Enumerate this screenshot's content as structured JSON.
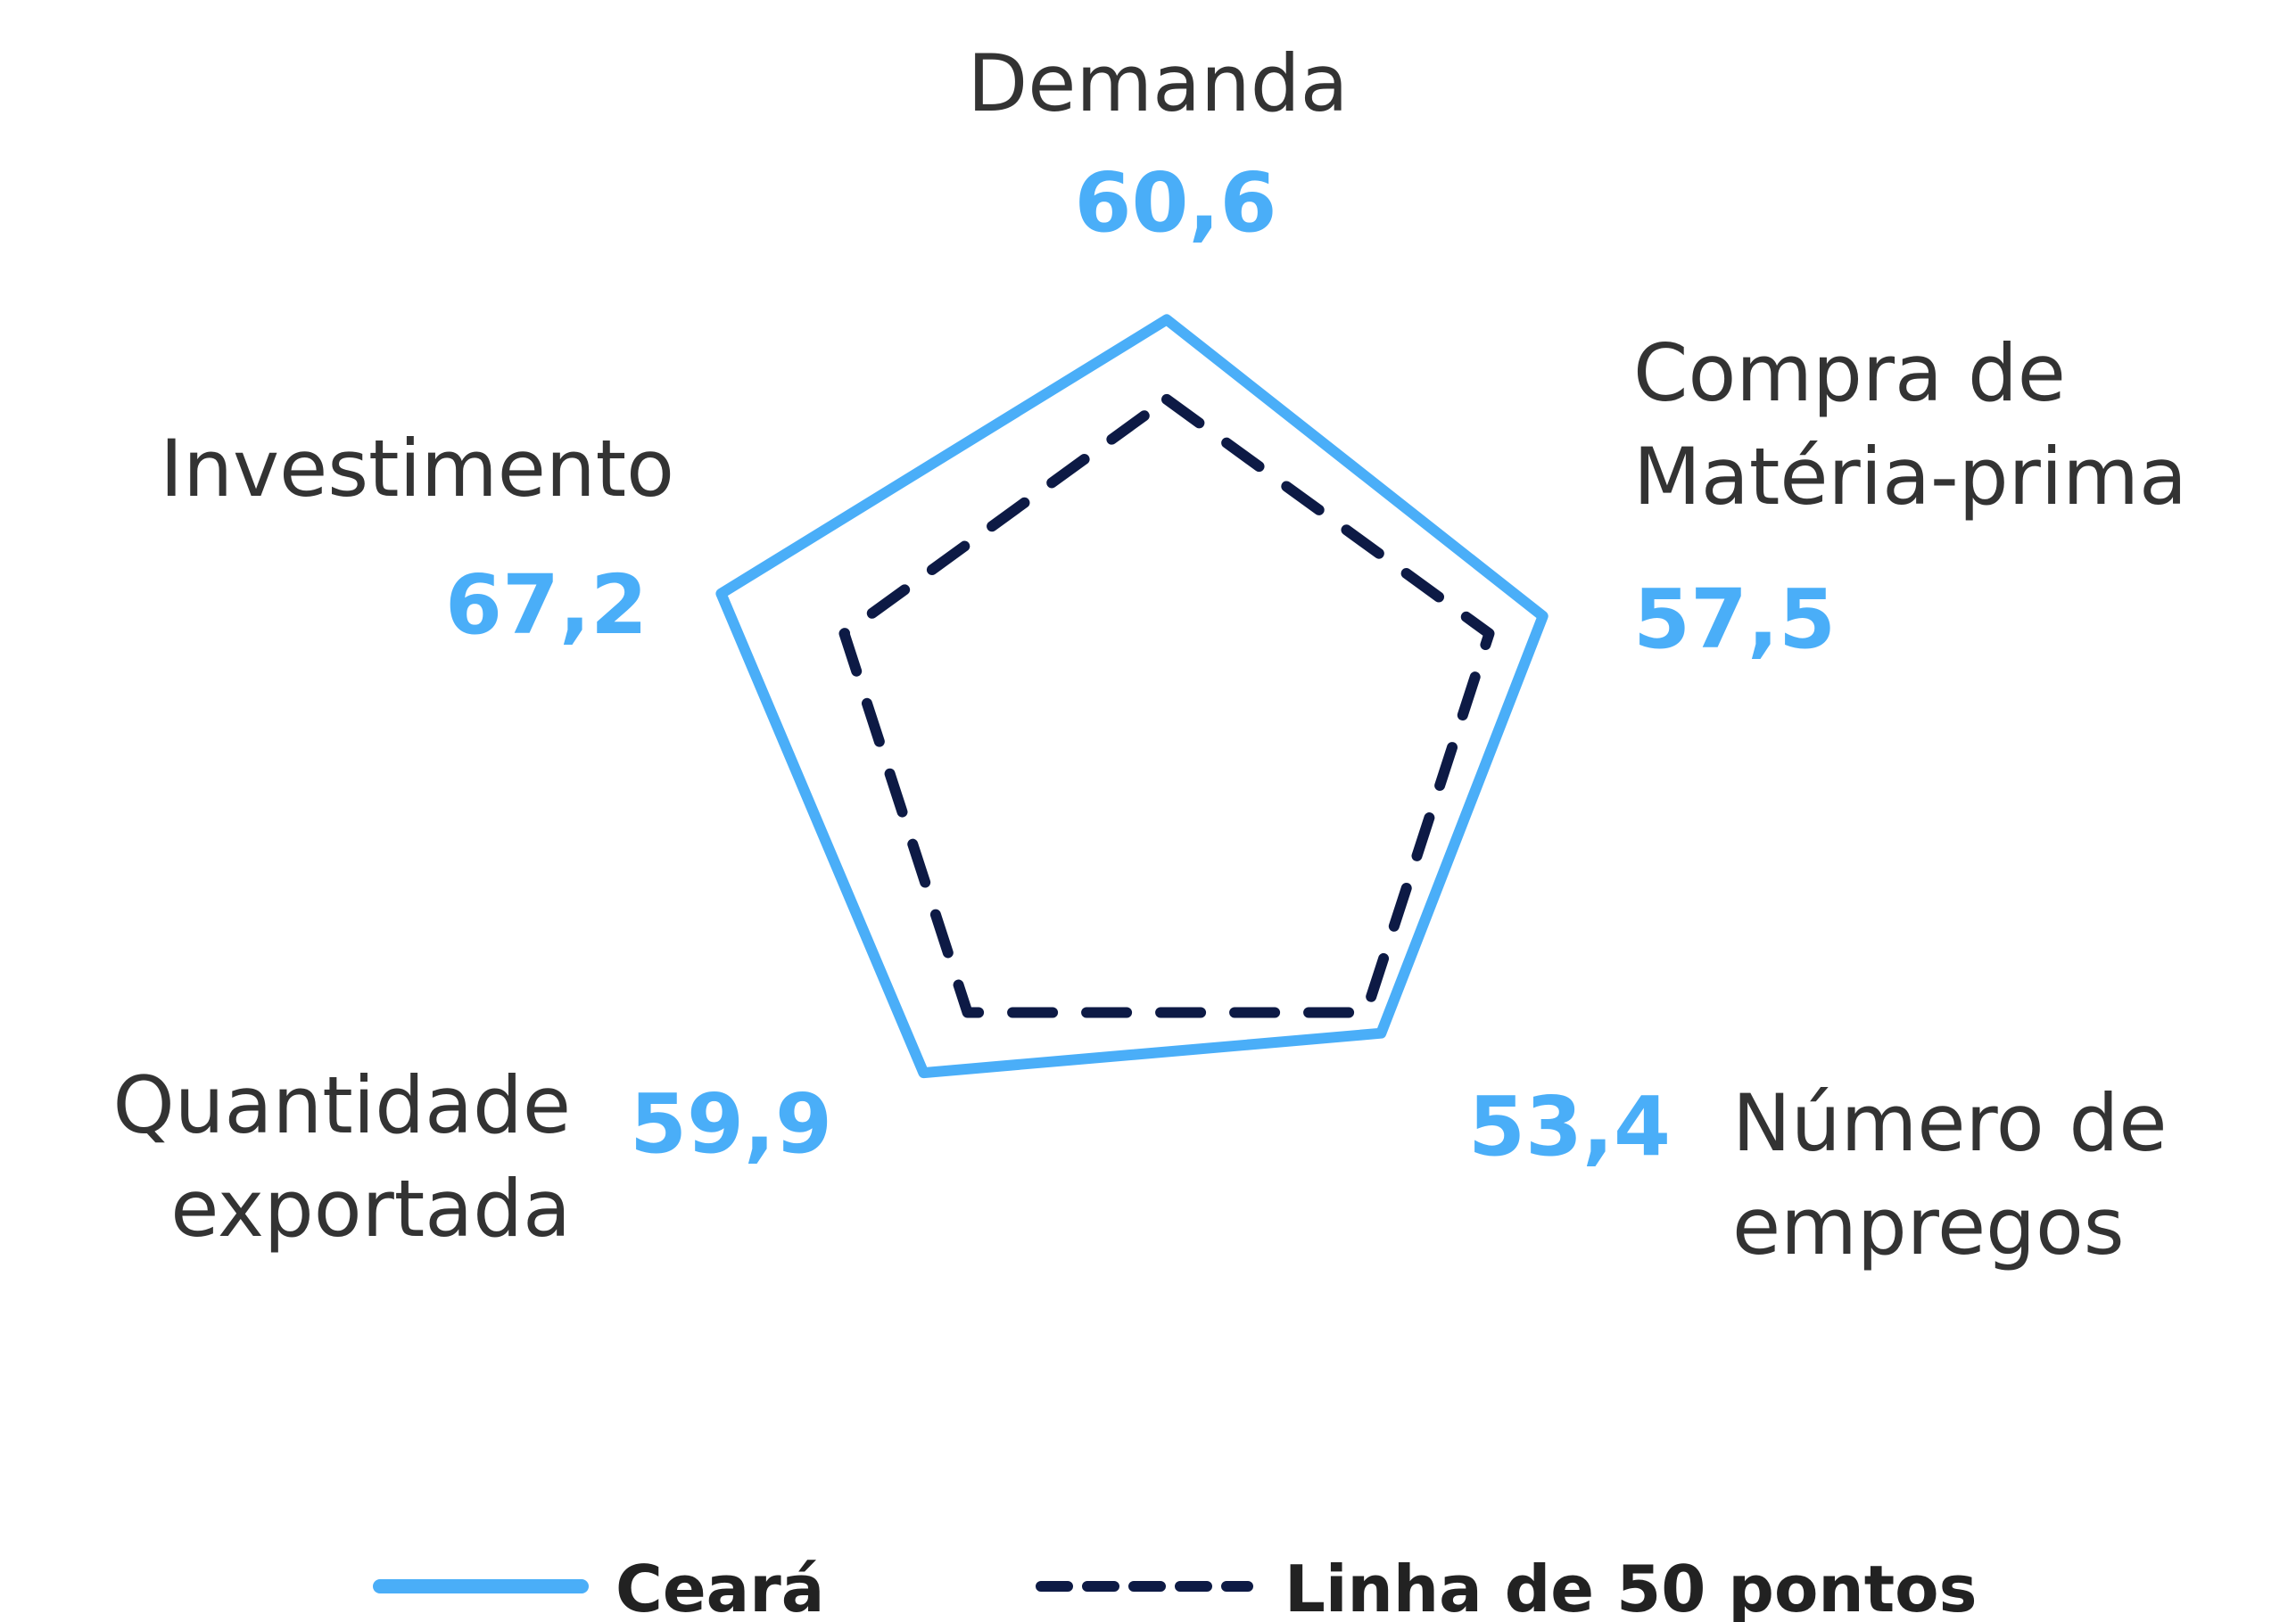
{
  "chart_data": {
    "type": "radar",
    "categories": [
      [
        "Demanda"
      ],
      [
        "Compra de",
        "Matéria-prima"
      ],
      [
        "Número de",
        "empregos"
      ],
      [
        "Quantidade",
        "exportada"
      ],
      [
        "Investimento"
      ]
    ],
    "series": [
      {
        "name": "Ceará",
        "color": "#4aaef8",
        "values": [
          60.6,
          57.5,
          53.4,
          59.9,
          67.2
        ],
        "value_labels": [
          "60,6",
          "57,5",
          "53,4",
          "59,9",
          "67,2"
        ]
      },
      {
        "name": "Linha de 50 pontos",
        "color": "#0d1a45",
        "values": [
          50,
          50,
          50,
          50,
          50
        ],
        "dashed": true
      }
    ],
    "ylim": [
      5,
      70
    ],
    "legend": "bottom"
  }
}
